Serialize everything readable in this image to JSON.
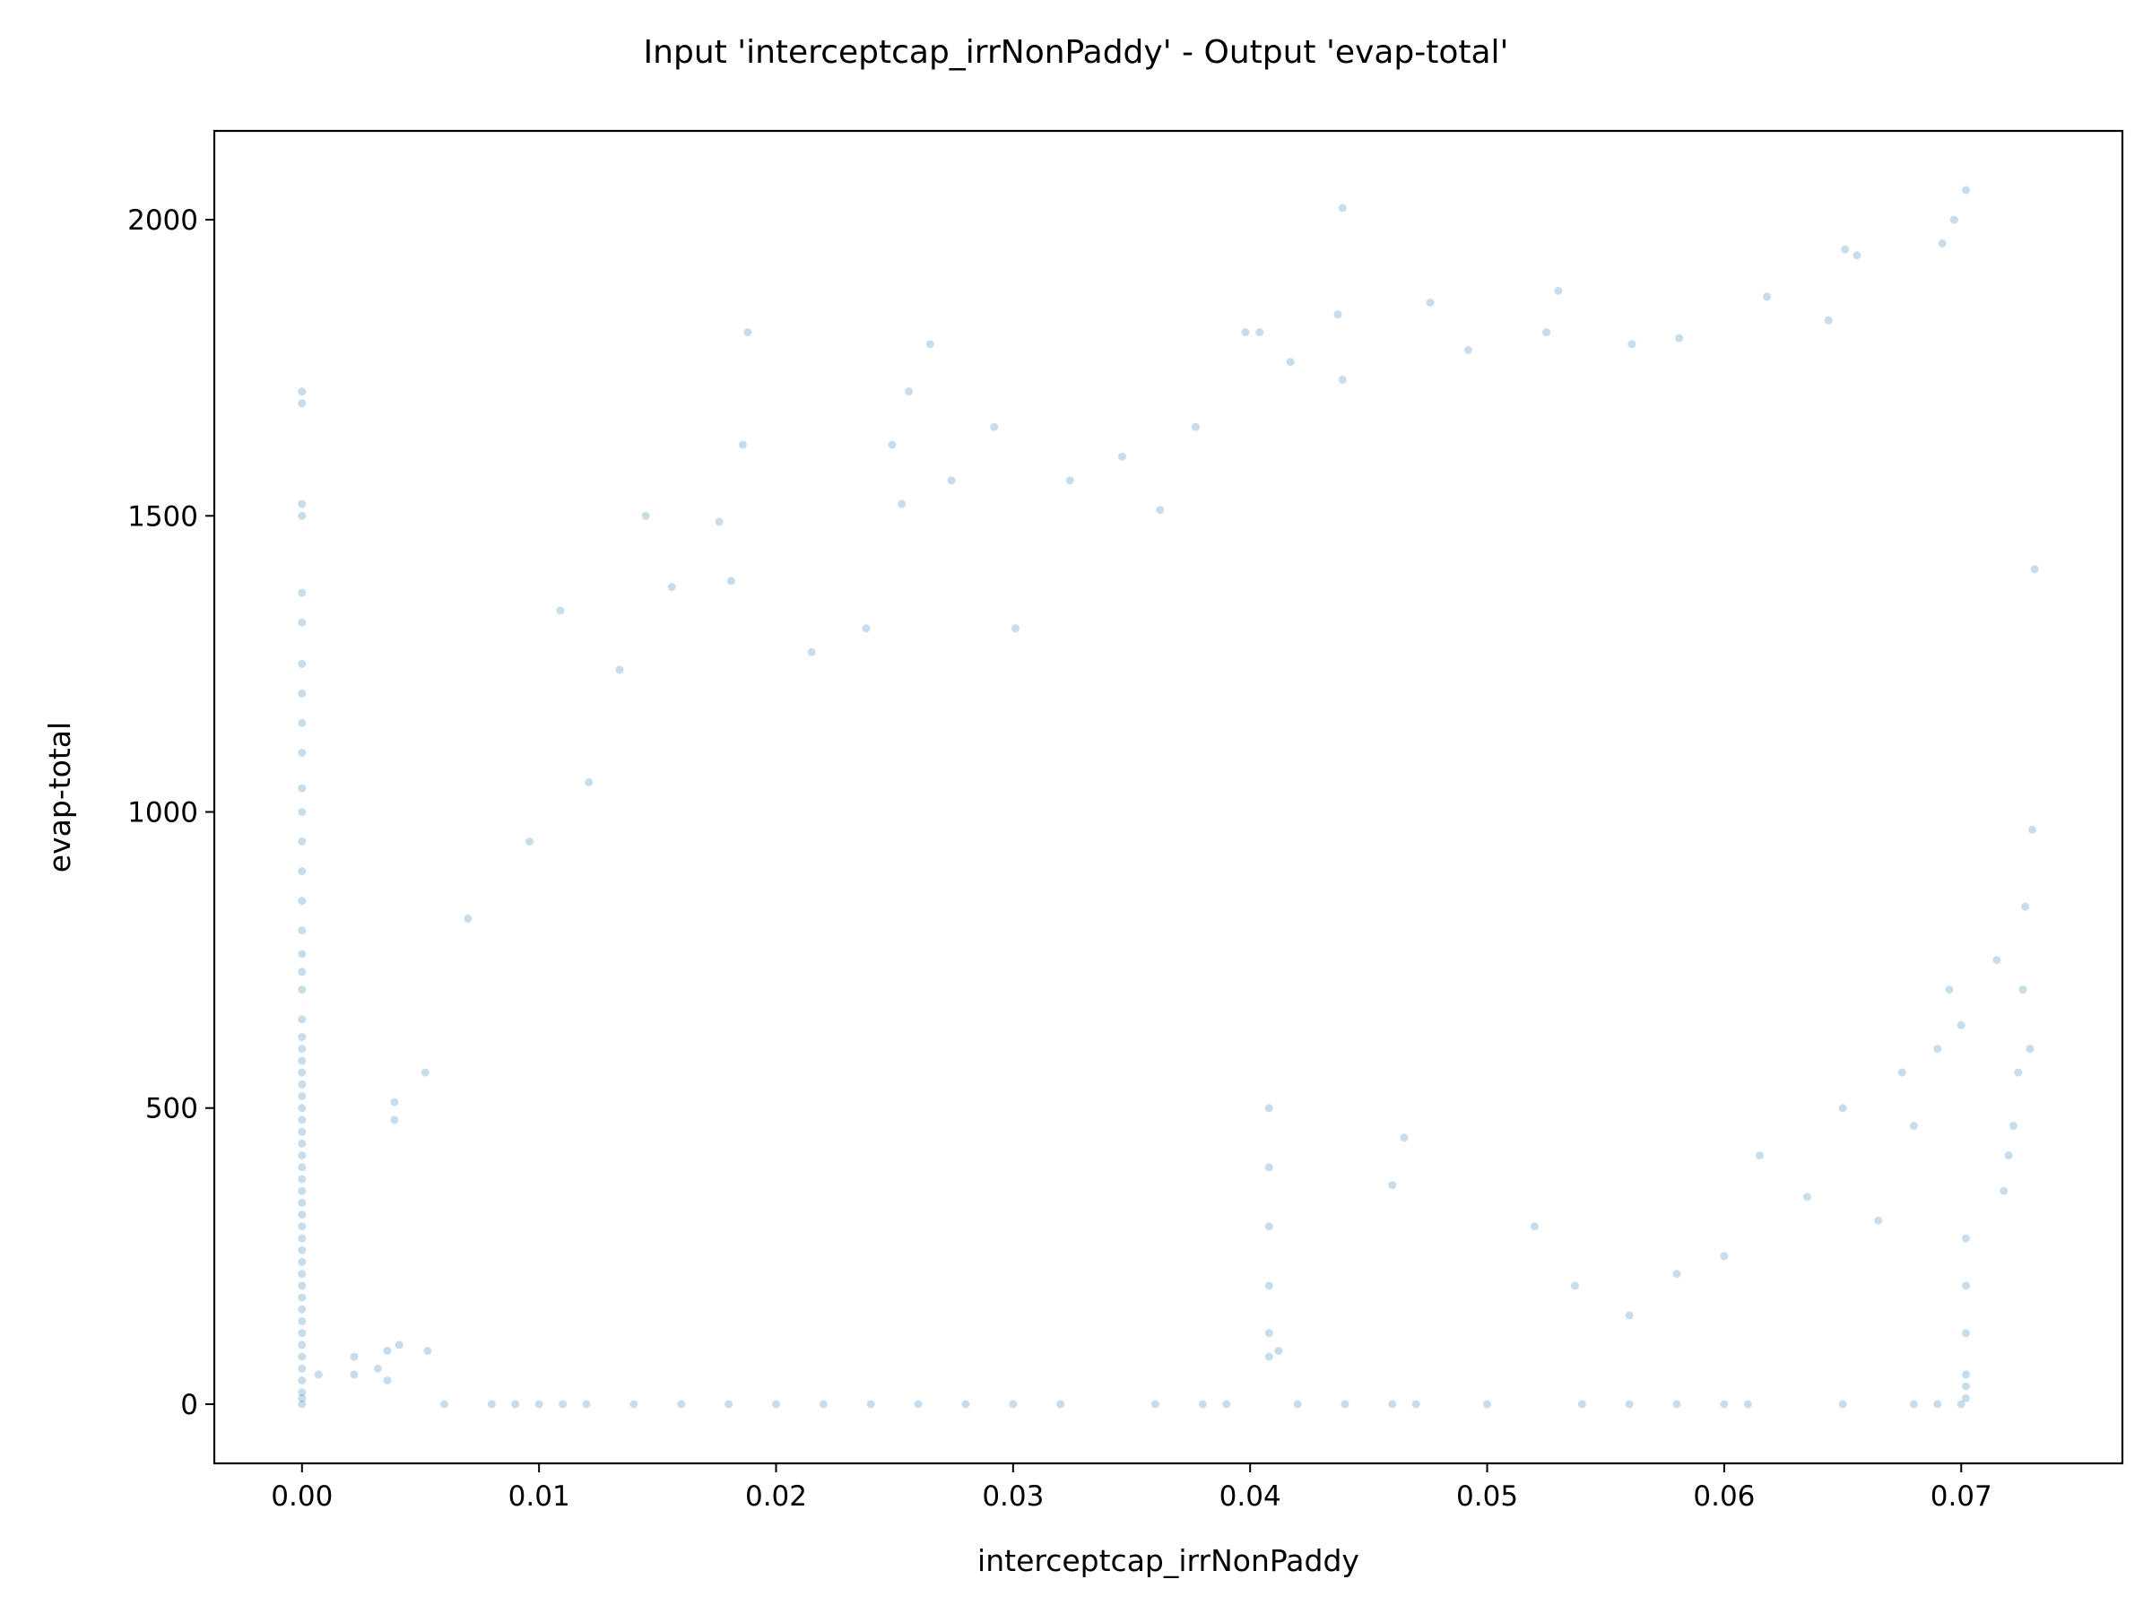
{
  "chart_data": {
    "type": "scatter",
    "title": "Input 'interceptcap_irrNonPaddy' - Output 'evap-total'",
    "xlabel": "interceptcap_irrNonPaddy",
    "ylabel": "evap-total",
    "xlim": [
      -0.0037,
      0.0768
    ],
    "ylim": [
      -100,
      2150
    ],
    "xticks": [
      0.0,
      0.01,
      0.02,
      0.03,
      0.04,
      0.05,
      0.06,
      0.07
    ],
    "xtick_labels": [
      "0.00",
      "0.01",
      "0.02",
      "0.03",
      "0.04",
      "0.05",
      "0.06",
      "0.07"
    ],
    "yticks": [
      0,
      500,
      1000,
      1500,
      2000
    ],
    "ytick_labels": [
      "0",
      "500",
      "1000",
      "1500",
      "2000"
    ],
    "grid": false,
    "legend": "none",
    "colors": {
      "points": "#1f77b4",
      "axes": "#000000",
      "background": "#ffffff"
    },
    "point_alpha": 0.25,
    "series": [
      {
        "points": [
          [
            0.0,
            0
          ],
          [
            0.0,
            10
          ],
          [
            0.0,
            20
          ],
          [
            0.0,
            40
          ],
          [
            0.0,
            60
          ],
          [
            0.0,
            80
          ],
          [
            0.0,
            100
          ],
          [
            0.0,
            120
          ],
          [
            0.0,
            140
          ],
          [
            0.0,
            160
          ],
          [
            0.0,
            180
          ],
          [
            0.0,
            200
          ],
          [
            0.0,
            220
          ],
          [
            0.0,
            240
          ],
          [
            0.0,
            260
          ],
          [
            0.0,
            280
          ],
          [
            0.0,
            300
          ],
          [
            0.0,
            320
          ],
          [
            0.0,
            340
          ],
          [
            0.0,
            360
          ],
          [
            0.0,
            380
          ],
          [
            0.0,
            400
          ],
          [
            0.0,
            420
          ],
          [
            0.0,
            440
          ],
          [
            0.0,
            460
          ],
          [
            0.0,
            480
          ],
          [
            0.0,
            500
          ],
          [
            0.0,
            520
          ],
          [
            0.0,
            540
          ],
          [
            0.0,
            560
          ],
          [
            0.0,
            580
          ],
          [
            0.0,
            600
          ],
          [
            0.0,
            620
          ],
          [
            0.0,
            650
          ],
          [
            0.0,
            700
          ],
          [
            0.0,
            730
          ],
          [
            0.0,
            760
          ],
          [
            0.0,
            800
          ],
          [
            0.0,
            850
          ],
          [
            0.0,
            900
          ],
          [
            0.0,
            950
          ],
          [
            0.0,
            1000
          ],
          [
            0.0,
            1040
          ],
          [
            0.0,
            1100
          ],
          [
            0.0,
            1150
          ],
          [
            0.0,
            1200
          ],
          [
            0.0,
            1250
          ],
          [
            0.0,
            1320
          ],
          [
            0.0,
            1370
          ],
          [
            0.0,
            1500
          ],
          [
            0.0,
            1520
          ],
          [
            0.0,
            1690
          ],
          [
            0.0,
            1710
          ],
          [
            0.0007,
            50
          ],
          [
            0.0022,
            50
          ],
          [
            0.0022,
            80
          ],
          [
            0.0032,
            60
          ],
          [
            0.0036,
            40
          ],
          [
            0.0036,
            90
          ],
          [
            0.0039,
            480
          ],
          [
            0.0039,
            510
          ],
          [
            0.0041,
            100
          ],
          [
            0.0052,
            560
          ],
          [
            0.0053,
            90
          ],
          [
            0.007,
            820
          ],
          [
            0.0096,
            950
          ],
          [
            0.0109,
            1340
          ],
          [
            0.0121,
            1050
          ],
          [
            0.0134,
            1240
          ],
          [
            0.0145,
            1500
          ],
          [
            0.0156,
            1380
          ],
          [
            0.0176,
            1490
          ],
          [
            0.0181,
            1390
          ],
          [
            0.0186,
            1620
          ],
          [
            0.0188,
            1810
          ],
          [
            0.0215,
            1270
          ],
          [
            0.0238,
            1310
          ],
          [
            0.0249,
            1620
          ],
          [
            0.0253,
            1520
          ],
          [
            0.0256,
            1710
          ],
          [
            0.0274,
            1560
          ],
          [
            0.0292,
            1650
          ],
          [
            0.0265,
            1790
          ],
          [
            0.0301,
            1310
          ],
          [
            0.0324,
            1560
          ],
          [
            0.0346,
            1600
          ],
          [
            0.0362,
            1510
          ],
          [
            0.0377,
            1650
          ],
          [
            0.0398,
            1810
          ],
          [
            0.0404,
            1810
          ],
          [
            0.0417,
            1760
          ],
          [
            0.0437,
            1840
          ],
          [
            0.0439,
            1730
          ],
          [
            0.0439,
            2020
          ],
          [
            0.0476,
            1860
          ],
          [
            0.0492,
            1780
          ],
          [
            0.0525,
            1810
          ],
          [
            0.053,
            1880
          ],
          [
            0.0561,
            1790
          ],
          [
            0.0581,
            1800
          ],
          [
            0.0618,
            1870
          ],
          [
            0.0644,
            1830
          ],
          [
            0.0651,
            1950
          ],
          [
            0.0656,
            1940
          ],
          [
            0.0692,
            1960
          ],
          [
            0.0697,
            2000
          ],
          [
            0.0702,
            2050
          ],
          [
            0.0731,
            1410
          ],
          [
            0.073,
            970
          ],
          [
            0.0727,
            840
          ],
          [
            0.0726,
            700
          ],
          [
            0.0729,
            600
          ],
          [
            0.0722,
            470
          ],
          [
            0.072,
            420
          ],
          [
            0.0718,
            360
          ],
          [
            0.0724,
            560
          ],
          [
            0.0715,
            750
          ],
          [
            0.0702,
            50
          ],
          [
            0.0702,
            120
          ],
          [
            0.0702,
            200
          ],
          [
            0.0702,
            280
          ],
          [
            0.006,
            0
          ],
          [
            0.008,
            0
          ],
          [
            0.009,
            0
          ],
          [
            0.01,
            0
          ],
          [
            0.011,
            0
          ],
          [
            0.012,
            0
          ],
          [
            0.014,
            0
          ],
          [
            0.016,
            0
          ],
          [
            0.018,
            0
          ],
          [
            0.02,
            0
          ],
          [
            0.022,
            0
          ],
          [
            0.024,
            0
          ],
          [
            0.026,
            0
          ],
          [
            0.028,
            0
          ],
          [
            0.03,
            0
          ],
          [
            0.032,
            0
          ],
          [
            0.036,
            0
          ],
          [
            0.038,
            0
          ],
          [
            0.039,
            0
          ],
          [
            0.042,
            0
          ],
          [
            0.044,
            0
          ],
          [
            0.046,
            0
          ],
          [
            0.047,
            0
          ],
          [
            0.05,
            0
          ],
          [
            0.054,
            0
          ],
          [
            0.056,
            0
          ],
          [
            0.058,
            0
          ],
          [
            0.06,
            0
          ],
          [
            0.061,
            0
          ],
          [
            0.065,
            0
          ],
          [
            0.068,
            0
          ],
          [
            0.069,
            0
          ],
          [
            0.07,
            0
          ],
          [
            0.0702,
            10
          ],
          [
            0.0702,
            30
          ],
          [
            0.0408,
            80
          ],
          [
            0.0408,
            120
          ],
          [
            0.0408,
            200
          ],
          [
            0.0408,
            300
          ],
          [
            0.0408,
            400
          ],
          [
            0.0408,
            500
          ],
          [
            0.0412,
            90
          ],
          [
            0.046,
            370
          ],
          [
            0.0465,
            450
          ],
          [
            0.052,
            300
          ],
          [
            0.0537,
            200
          ],
          [
            0.056,
            150
          ],
          [
            0.058,
            220
          ],
          [
            0.06,
            250
          ],
          [
            0.0615,
            420
          ],
          [
            0.0635,
            350
          ],
          [
            0.065,
            500
          ],
          [
            0.0665,
            310
          ],
          [
            0.0675,
            560
          ],
          [
            0.068,
            470
          ],
          [
            0.069,
            600
          ],
          [
            0.0695,
            700
          ],
          [
            0.07,
            640
          ]
        ]
      }
    ]
  }
}
